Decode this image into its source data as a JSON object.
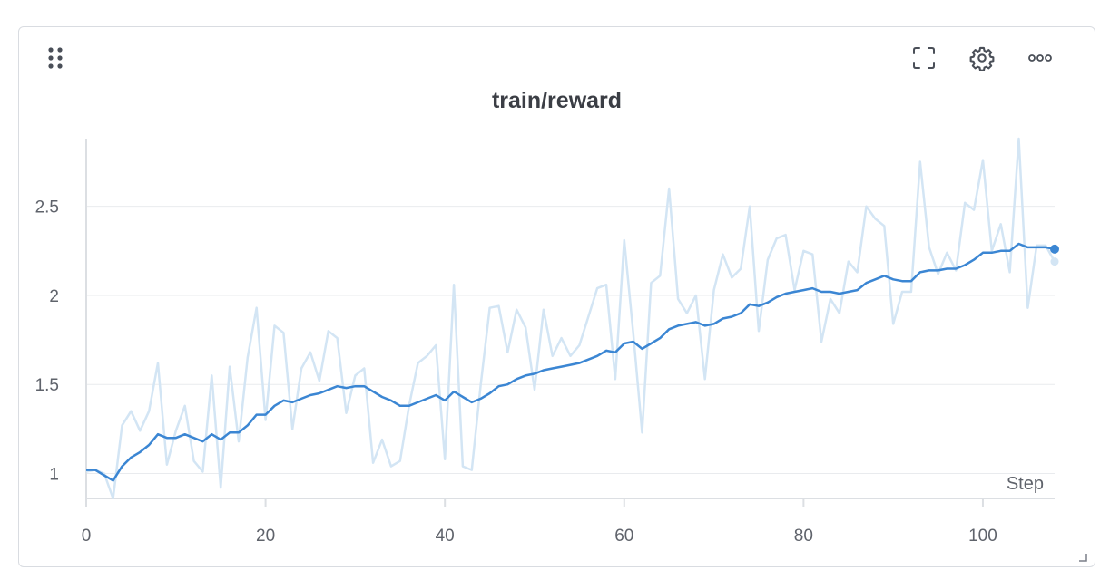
{
  "panel": {
    "icons": {
      "drag": "drag-handle-icon",
      "fullscreen": "fullscreen-icon",
      "settings": "gear-icon",
      "more": "more-options-icon",
      "resize": "resize-handle-icon"
    }
  },
  "chart_data": {
    "type": "line",
    "title": "train/reward",
    "xlabel": "Step",
    "ylabel": "",
    "xlim": [
      0,
      108
    ],
    "ylim": [
      0.86,
      2.88
    ],
    "x_ticks": [
      0,
      20,
      40,
      60,
      80,
      100
    ],
    "y_ticks": [
      1,
      1.5,
      2,
      2.5
    ],
    "y_tick_labels": [
      "1",
      "1.5",
      "2",
      "2.5"
    ],
    "grid": true,
    "series": [
      {
        "role": "raw",
        "color": "#d3e5f4",
        "values": [
          1.01,
          1.02,
          1.0,
          0.86,
          1.27,
          1.35,
          1.24,
          1.35,
          1.62,
          1.05,
          1.24,
          1.38,
          1.07,
          1.01,
          1.55,
          0.92,
          1.6,
          1.18,
          1.65,
          1.93,
          1.3,
          1.83,
          1.79,
          1.25,
          1.59,
          1.68,
          1.52,
          1.8,
          1.76,
          1.34,
          1.55,
          1.59,
          1.06,
          1.19,
          1.04,
          1.07,
          1.38,
          1.62,
          1.66,
          1.72,
          1.08,
          2.06,
          1.04,
          1.02,
          1.5,
          1.93,
          1.94,
          1.68,
          1.92,
          1.82,
          1.47,
          1.92,
          1.66,
          1.76,
          1.66,
          1.72,
          1.88,
          2.04,
          2.06,
          1.53,
          2.31,
          1.79,
          1.23,
          2.07,
          2.11,
          2.6,
          1.98,
          1.9,
          2.0,
          1.53,
          2.03,
          2.23,
          2.1,
          2.15,
          2.5,
          1.8,
          2.2,
          2.32,
          2.34,
          2.03,
          2.25,
          2.23,
          1.74,
          1.98,
          1.9,
          2.19,
          2.13,
          2.5,
          2.43,
          2.39,
          1.84,
          2.02,
          2.02,
          2.75,
          2.27,
          2.12,
          2.24,
          2.14,
          2.52,
          2.48,
          2.76,
          2.25,
          2.4,
          2.13,
          2.88,
          1.93,
          2.28,
          2.28,
          2.19
        ]
      },
      {
        "role": "smoothed",
        "color": "#3b86d3",
        "values": [
          1.02,
          1.02,
          0.99,
          0.96,
          1.04,
          1.09,
          1.12,
          1.16,
          1.22,
          1.2,
          1.2,
          1.22,
          1.2,
          1.18,
          1.22,
          1.19,
          1.23,
          1.23,
          1.27,
          1.33,
          1.33,
          1.38,
          1.41,
          1.4,
          1.42,
          1.44,
          1.45,
          1.47,
          1.49,
          1.48,
          1.49,
          1.49,
          1.46,
          1.43,
          1.41,
          1.38,
          1.38,
          1.4,
          1.42,
          1.44,
          1.41,
          1.46,
          1.43,
          1.4,
          1.42,
          1.45,
          1.49,
          1.5,
          1.53,
          1.55,
          1.56,
          1.58,
          1.59,
          1.6,
          1.61,
          1.62,
          1.64,
          1.66,
          1.69,
          1.68,
          1.73,
          1.74,
          1.7,
          1.73,
          1.76,
          1.81,
          1.83,
          1.84,
          1.85,
          1.83,
          1.84,
          1.87,
          1.88,
          1.9,
          1.95,
          1.94,
          1.96,
          1.99,
          2.01,
          2.02,
          2.03,
          2.04,
          2.02,
          2.02,
          2.01,
          2.02,
          2.03,
          2.07,
          2.09,
          2.11,
          2.09,
          2.08,
          2.08,
          2.13,
          2.14,
          2.14,
          2.15,
          2.15,
          2.17,
          2.2,
          2.24,
          2.24,
          2.25,
          2.25,
          2.29,
          2.27,
          2.27,
          2.27,
          2.26
        ]
      }
    ]
  }
}
